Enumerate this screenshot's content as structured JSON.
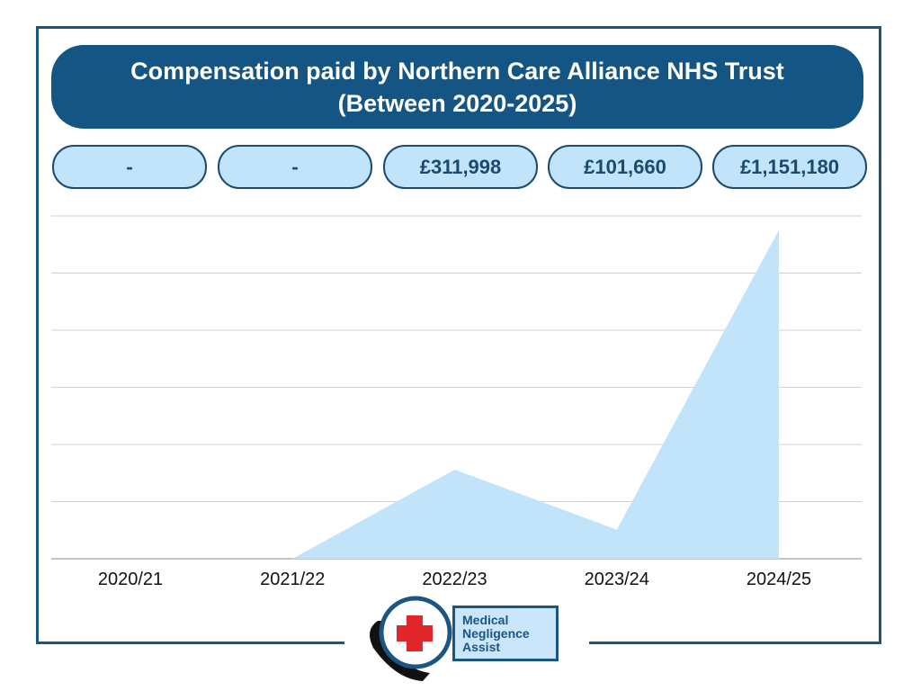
{
  "title_line1": "Compensation paid by Northern Care Alliance NHS Trust",
  "title_line2": "(Between 2020-2025)",
  "value_labels": [
    "-",
    "-",
    "£311,998",
    "£101,660",
    "£1,151,180"
  ],
  "logo": {
    "line1": "Medical",
    "line2": "Negligence",
    "line3": "Assist"
  },
  "colors": {
    "primary": "#145583",
    "fill": "#c1e4fa",
    "cross": "#e0252b"
  },
  "chart_data": {
    "type": "area",
    "title": "Compensation paid by Northern Care Alliance NHS Trust (Between 2020-2025)",
    "categories": [
      "2020/21",
      "2021/22",
      "2022/23",
      "2023/24",
      "2024/25"
    ],
    "values": [
      0,
      0,
      311998,
      101660,
      1151180
    ],
    "ylim": [
      0,
      1200000
    ],
    "grid": true,
    "xlabel": "",
    "ylabel": ""
  }
}
